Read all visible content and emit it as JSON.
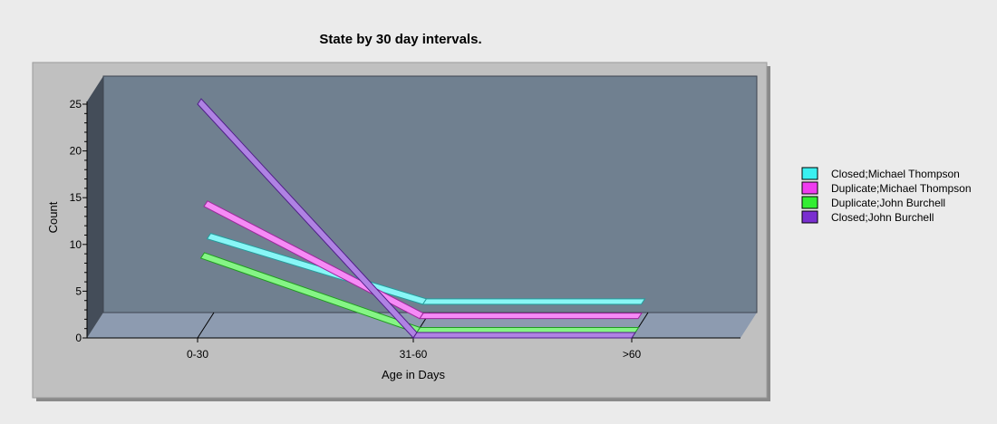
{
  "chart_data": {
    "type": "line",
    "title": "State by 30 day intervals.",
    "xlabel": "Age in Days",
    "ylabel": "Count",
    "categories": [
      "0-30",
      "31-60",
      ">60"
    ],
    "ylim": [
      0,
      25
    ],
    "yticks": [
      0,
      5,
      10,
      15,
      20,
      25
    ],
    "grid": false,
    "legend_position": "right",
    "series": [
      {
        "name": "Closed;Michael Thompson",
        "color": "#39f0f0",
        "values": [
          9,
          2,
          2
        ]
      },
      {
        "name": "Duplicate;Michael Thompson",
        "color": "#f03cf0",
        "values": [
          13,
          1,
          1
        ]
      },
      {
        "name": "Duplicate;John Burchell",
        "color": "#33ee33",
        "values": [
          8,
          0,
          0
        ]
      },
      {
        "name": "Closed;John Burchell",
        "color": "#7a2fd0",
        "values": [
          25,
          0,
          0
        ]
      }
    ]
  }
}
